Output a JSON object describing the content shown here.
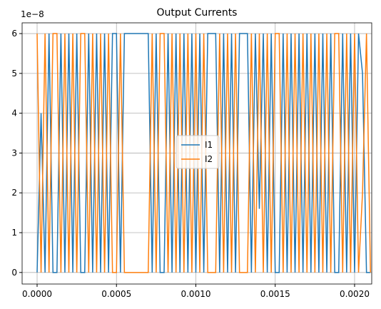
{
  "chart_data": {
    "type": "line",
    "title": "Output Currents",
    "offset_label": "1e−8",
    "x": [
      0,
      2.5e-05,
      5e-05,
      7.5e-05,
      0.0001,
      0.000125,
      0.00015,
      0.000175,
      0.0002,
      0.000225,
      0.00025,
      0.000275,
      0.0003,
      0.000325,
      0.00035,
      0.000375,
      0.0004,
      0.000425,
      0.00045,
      0.000475,
      0.0005,
      0.000525,
      0.00055,
      0.000575,
      0.0006,
      0.000625,
      0.00065,
      0.000675,
      0.0007,
      0.000725,
      0.00075,
      0.000775,
      0.0008,
      0.000825,
      0.00085,
      0.000875,
      0.0009,
      0.000925,
      0.00095,
      0.000975,
      0.001,
      0.001025,
      0.00105,
      0.001075,
      0.0011,
      0.001125,
      0.00115,
      0.001175,
      0.0012,
      0.001225,
      0.00125,
      0.001275,
      0.0013,
      0.001325,
      0.00135,
      0.001375,
      0.0014,
      0.001425,
      0.00145,
      0.001475,
      0.0015,
      0.001525,
      0.00155,
      0.001575,
      0.0016,
      0.001625,
      0.00165,
      0.001675,
      0.0017,
      0.001725,
      0.00175,
      0.001775,
      0.0018,
      0.001825,
      0.00185,
      0.001875,
      0.0019,
      0.001925,
      0.00195,
      0.001975,
      0.002,
      0.002025,
      0.00205,
      0.002075,
      0.0021
    ],
    "series": [
      {
        "name": "I1",
        "color": "#1f77b4",
        "values": [
          0,
          4,
          0,
          6,
          0,
          0,
          6,
          0,
          6,
          0,
          6,
          0,
          0,
          6,
          0,
          6,
          0,
          6,
          0,
          6,
          6,
          0,
          6,
          6,
          6,
          6,
          6,
          6,
          6,
          0,
          6,
          0,
          0,
          6,
          0,
          6,
          0,
          6,
          0,
          6,
          0,
          6,
          0,
          6,
          6,
          6,
          0,
          6,
          0,
          6,
          0,
          6,
          6,
          6,
          0,
          6,
          1.6,
          6,
          0,
          6,
          0,
          0,
          6,
          0,
          6,
          0,
          6,
          0,
          6,
          0,
          6,
          0,
          6,
          0,
          6,
          0,
          0,
          6,
          0,
          6,
          0,
          6,
          5,
          0,
          0
        ]
      },
      {
        "name": "I2",
        "color": "#ff7f0e",
        "values": [
          6,
          0,
          6,
          0,
          6,
          6,
          0,
          6,
          0,
          6,
          0,
          6,
          6,
          0,
          6,
          0,
          6,
          0,
          6,
          0,
          0,
          6,
          0,
          0,
          0,
          0,
          0,
          0,
          0,
          6,
          0,
          6,
          6,
          0,
          6,
          0,
          6,
          0,
          6,
          0,
          6,
          0,
          6,
          0,
          0,
          0,
          6,
          0,
          6,
          0,
          6,
          0,
          0,
          0,
          6,
          0,
          6,
          0,
          6,
          0,
          6,
          6,
          0,
          6,
          0,
          6,
          0,
          6,
          0,
          6,
          0,
          6,
          0,
          6,
          0,
          6,
          6,
          0,
          6,
          0,
          6,
          0,
          2,
          6,
          0
        ]
      }
    ],
    "xlim": [
      -9.44e-05,
      0.002108
    ],
    "xticks": [
      {
        "value": 0,
        "label": "0.0000"
      },
      {
        "value": 0.0005,
        "label": "0.0005"
      },
      {
        "value": 0.001,
        "label": "0.0010"
      },
      {
        "value": 0.0015,
        "label": "0.0015"
      },
      {
        "value": 0.002,
        "label": "0.0020"
      }
    ],
    "ylim": [
      -0.29,
      6.27
    ],
    "yticks": [
      0,
      1,
      2,
      3,
      4,
      5,
      6
    ],
    "grid": true,
    "legend": "center"
  }
}
